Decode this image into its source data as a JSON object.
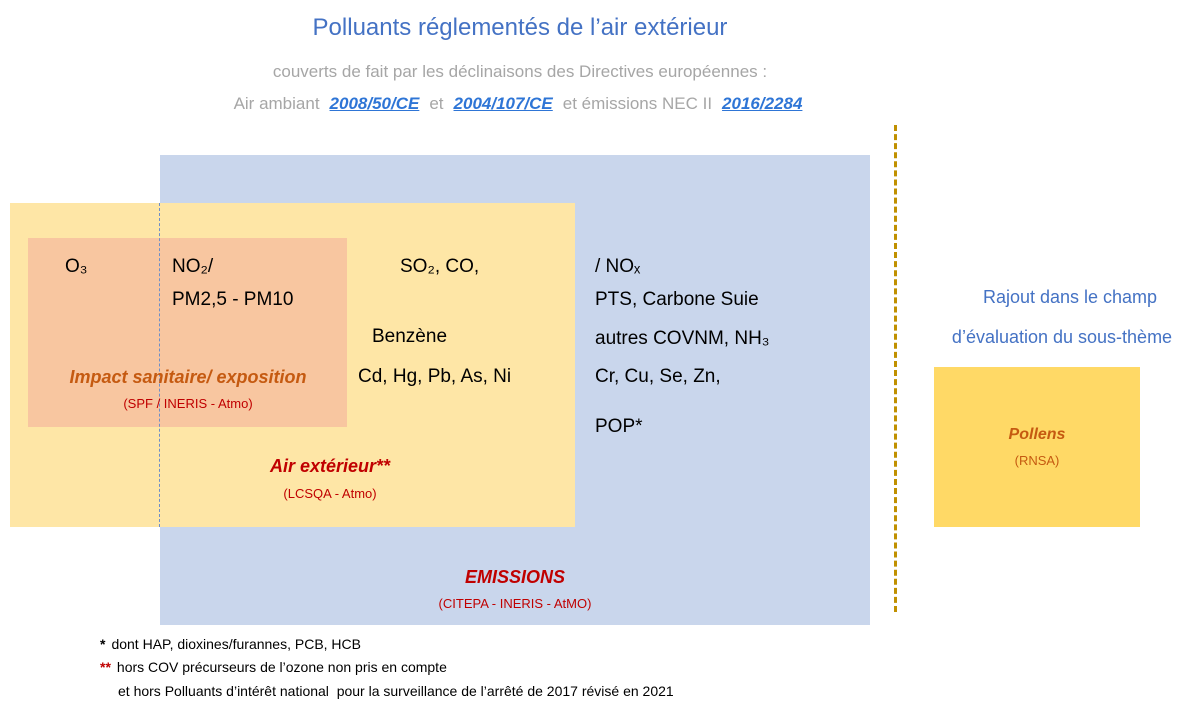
{
  "header": {
    "title": "Polluants réglementés de l’air extérieur",
    "subtitle": "couverts de fait par les déclinaisons des Directives européennes :",
    "line2": {
      "parts": [
        "Air ambiant",
        "et",
        "et émissions NEC II"
      ],
      "links": [
        "2008/50/CE",
        "2004/107/CE",
        "2016/2284"
      ]
    }
  },
  "zones": {
    "emissions": {
      "label": "EMISSIONS",
      "source": "(CITEPA - INERIS - AtMO)"
    },
    "air": {
      "label": "Air extérieur**",
      "source": "(LCSQA - Atmo)"
    },
    "impact": {
      "label": "Impact sanitaire/ exposition",
      "source": "(SPF / INERIS - Atmo)"
    }
  },
  "pollutants": {
    "impact_only": [
      "O₃"
    ],
    "impact_air": [
      "NO₂/",
      "PM2,5 - PM10"
    ],
    "air": [
      "SO₂, CO,",
      "Benzène",
      "Cd, Hg, Pb, As, Ni"
    ],
    "emissions": [
      "/ NOₓ",
      "PTS, Carbone Suie",
      "autres COVNM, NH₃",
      "Cr, Cu, Se, Zn,",
      "POP*"
    ]
  },
  "addition": {
    "lines": [
      "Rajout dans le champ",
      "d’évaluation du sous-thème"
    ],
    "box": {
      "label": "Pollens",
      "source": "(RNSA)"
    }
  },
  "footnotes": [
    {
      "marker": "*",
      "text": "dont HAP, dioxines/furannes, PCB, HCB"
    },
    {
      "marker": "**",
      "text": "hors COV précurseurs de l’ozone non pris en compte"
    },
    {
      "text": "et hors Polluants d’intérêt national  pour la surveillance de l’arrêté de 2017 révisé en 2021"
    }
  ]
}
